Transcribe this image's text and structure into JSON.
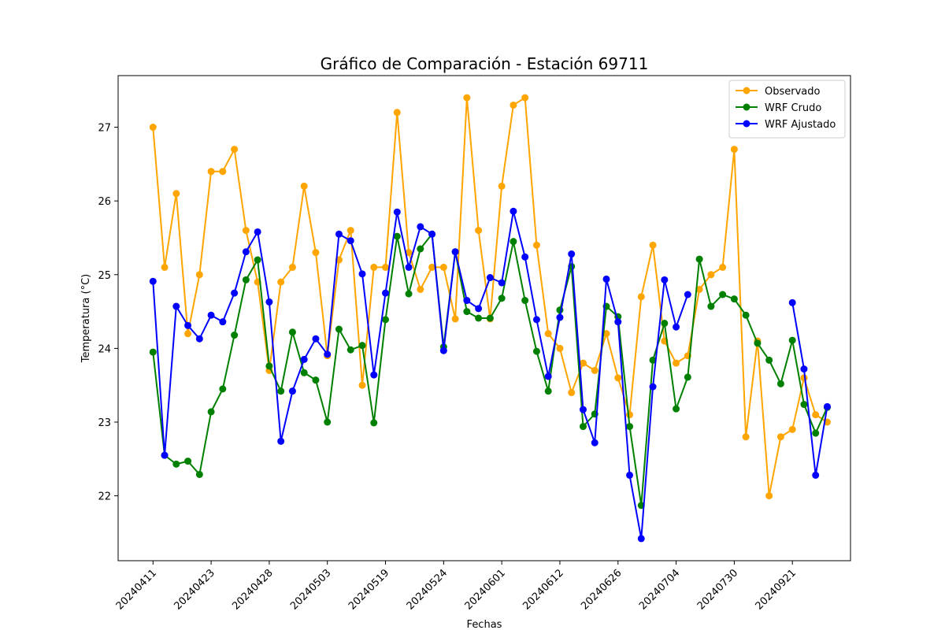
{
  "chart_data": {
    "type": "line",
    "title": "Gráfico de Comparación - Estación 69711",
    "xlabel": "Fechas",
    "ylabel": "Temperatura (°C)",
    "xlim": [
      -3,
      60
    ],
    "ylim": [
      21.12,
      27.7
    ],
    "xticks": [
      {
        "pos": 0,
        "label": "20240411"
      },
      {
        "pos": 5,
        "label": "20240423"
      },
      {
        "pos": 10,
        "label": "20240428"
      },
      {
        "pos": 15,
        "label": "20240503"
      },
      {
        "pos": 20,
        "label": "20240519"
      },
      {
        "pos": 25,
        "label": "20240524"
      },
      {
        "pos": 30,
        "label": "20240601"
      },
      {
        "pos": 35,
        "label": "20240612"
      },
      {
        "pos": 40,
        "label": "20240626"
      },
      {
        "pos": 45,
        "label": "20240704"
      },
      {
        "pos": 50,
        "label": "20240730"
      },
      {
        "pos": 55,
        "label": "20240921"
      }
    ],
    "yticks": [
      22,
      23,
      24,
      25,
      26,
      27
    ],
    "legend": "top-right",
    "grid": false,
    "series": [
      {
        "name": "Observado",
        "color": "#ffa500",
        "values": [
          27.0,
          25.1,
          26.1,
          24.2,
          25.0,
          26.4,
          26.4,
          26.7,
          25.6,
          24.9,
          23.7,
          24.9,
          25.1,
          26.2,
          25.3,
          23.9,
          25.2,
          25.6,
          23.5,
          25.1,
          25.1,
          27.2,
          25.3,
          24.8,
          25.1,
          25.1,
          24.4,
          27.4,
          25.6,
          24.4,
          26.2,
          27.3,
          27.4,
          25.4,
          24.2,
          24.0,
          23.4,
          23.8,
          23.7,
          24.2,
          23.6,
          23.1,
          24.7,
          25.4,
          24.1,
          23.8,
          23.9,
          24.8,
          25.0,
          25.1,
          26.7,
          22.8,
          24.1,
          22.0,
          22.8,
          22.9,
          23.6,
          23.1,
          23.0
        ]
      },
      {
        "name": "WRF Crudo",
        "color": "#008000",
        "values": [
          23.95,
          22.55,
          22.43,
          22.47,
          22.29,
          23.14,
          23.45,
          24.18,
          24.93,
          25.2,
          23.76,
          23.42,
          24.22,
          23.67,
          23.57,
          23.0,
          24.26,
          23.98,
          24.04,
          22.99,
          24.39,
          25.52,
          24.74,
          25.35,
          25.55,
          24.02,
          25.31,
          24.5,
          24.41,
          24.41,
          24.68,
          25.45,
          24.65,
          23.96,
          23.42,
          24.52,
          25.11,
          22.94,
          23.11,
          24.57,
          24.43,
          22.94,
          21.87,
          23.84,
          24.34,
          23.18,
          23.61,
          25.21,
          24.57,
          24.73,
          24.67,
          24.45,
          24.07,
          23.84,
          23.52,
          24.11,
          23.24,
          22.85,
          23.2
        ]
      },
      {
        "name": "WRF Ajustado",
        "color": "#0000ff",
        "values": [
          24.91,
          22.55,
          24.57,
          24.31,
          24.13,
          24.45,
          24.36,
          24.75,
          25.31,
          25.58,
          24.63,
          22.74,
          23.42,
          23.85,
          24.13,
          23.92,
          25.55,
          25.46,
          25.01,
          23.64,
          24.75,
          25.85,
          25.1,
          25.65,
          25.55,
          23.97,
          25.31,
          24.65,
          24.54,
          24.96,
          24.89,
          25.86,
          25.24,
          24.39,
          23.62,
          24.42,
          25.28,
          23.17,
          22.72,
          24.94,
          24.36,
          22.28,
          21.42,
          23.48,
          24.93,
          24.29,
          24.73,
          null,
          null,
          null,
          null,
          null,
          null,
          null,
          null,
          24.62,
          23.72,
          22.28,
          23.21
        ]
      }
    ]
  }
}
